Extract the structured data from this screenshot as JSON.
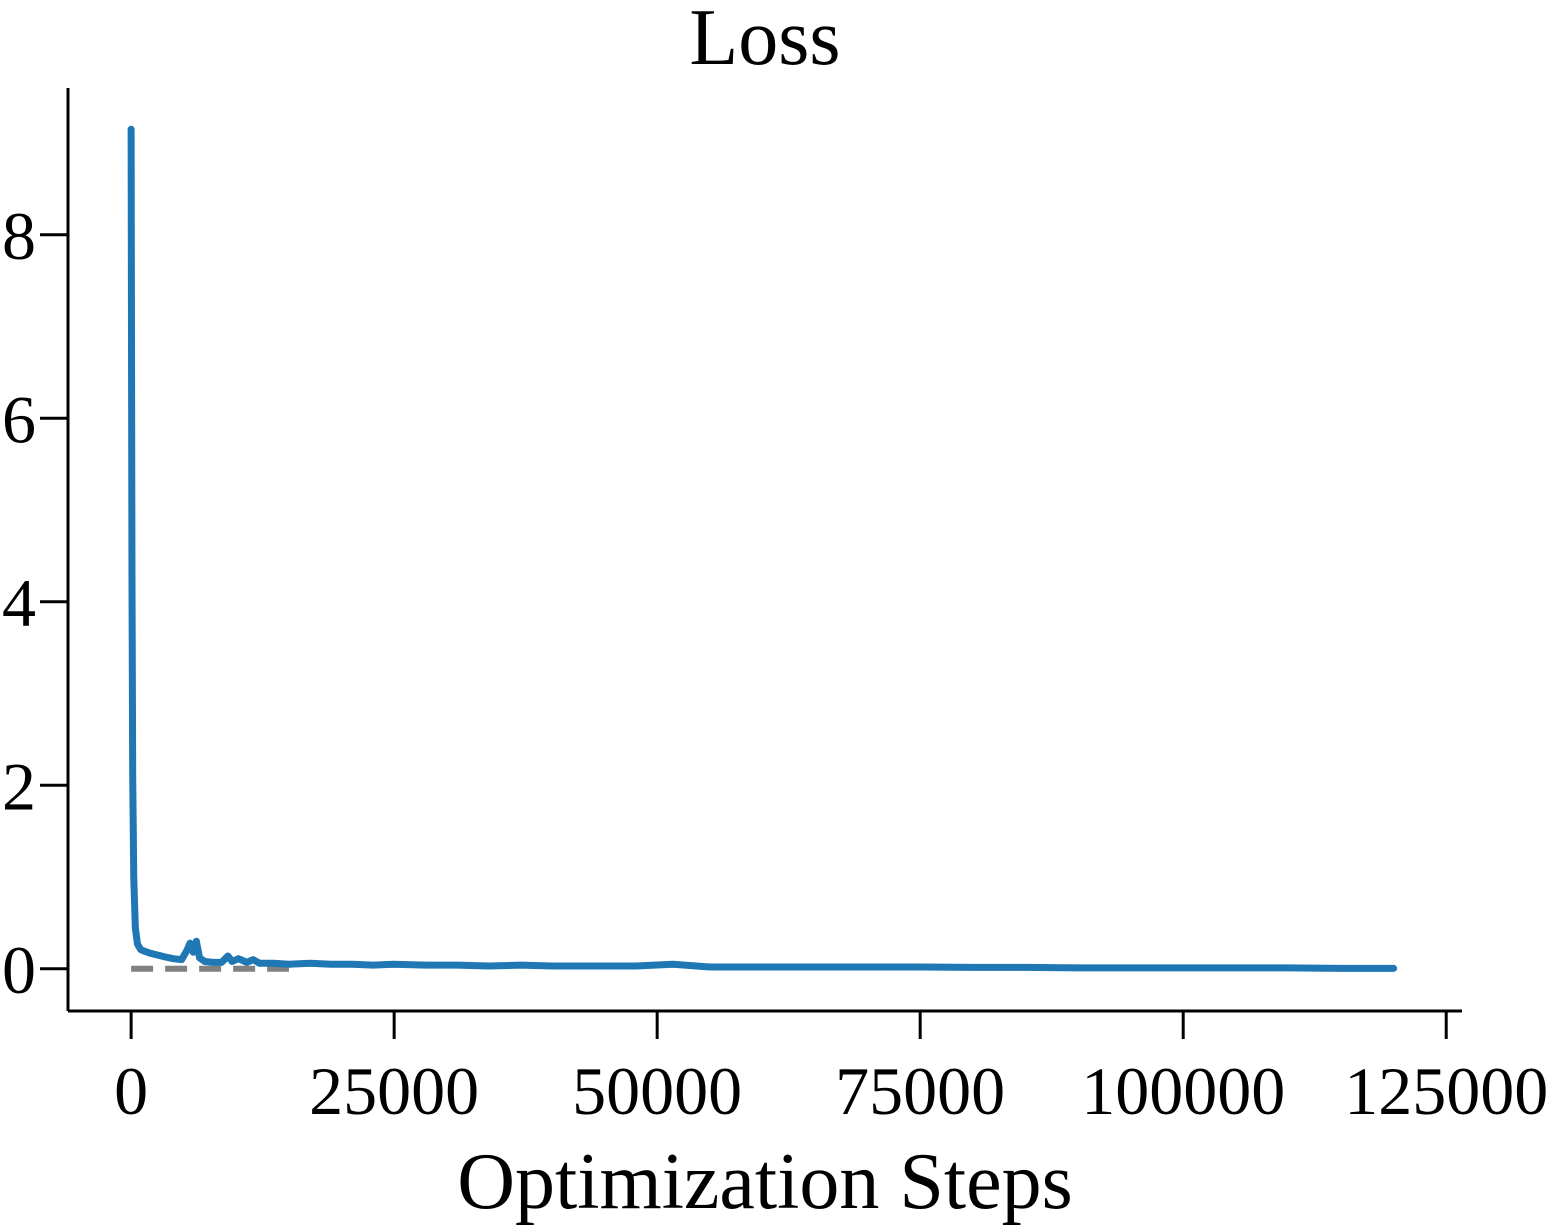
{
  "chart_data": {
    "type": "line",
    "title": "Loss",
    "xlabel": "Optimization Steps",
    "ylabel": "",
    "xlim": [
      -6000,
      126500
    ],
    "ylim": [
      -0.46,
      9.6
    ],
    "xticks": [
      0,
      25000,
      50000,
      75000,
      100000,
      125000
    ],
    "xtick_labels": [
      "0",
      "25000",
      "50000",
      "75000",
      "100000",
      "125000"
    ],
    "yticks": [
      0,
      2,
      4,
      6,
      8
    ],
    "ytick_labels": [
      "0",
      "2",
      "4",
      "6",
      "8"
    ],
    "grid": false,
    "legend": "none",
    "reference_line": {
      "name": "zero baseline",
      "y": 0,
      "x_range": [
        0,
        15000
      ],
      "color": "#808080",
      "style": "dashed"
    },
    "series": [
      {
        "name": "loss",
        "color": "#1f77b4",
        "x": [
          0,
          30,
          80,
          150,
          250,
          400,
          600,
          900,
          1300,
          1800,
          2500,
          3200,
          4000,
          4800,
          5300,
          5600,
          5900,
          6200,
          6500,
          7000,
          7800,
          8600,
          9200,
          9600,
          10200,
          11000,
          11600,
          12200,
          13500,
          15000,
          17000,
          19000,
          21000,
          23000,
          25000,
          28000,
          31000,
          34000,
          37000,
          40000,
          44000,
          48000,
          51500,
          55000,
          60000,
          65000,
          70000,
          75000,
          80000,
          85000,
          90000,
          95000,
          100000,
          105000,
          110000,
          115000,
          120000
        ],
        "y": [
          9.15,
          7.2,
          4.3,
          2.1,
          1.0,
          0.45,
          0.27,
          0.21,
          0.19,
          0.17,
          0.15,
          0.13,
          0.11,
          0.1,
          0.2,
          0.28,
          0.18,
          0.3,
          0.12,
          0.08,
          0.07,
          0.07,
          0.14,
          0.08,
          0.11,
          0.07,
          0.1,
          0.06,
          0.06,
          0.05,
          0.06,
          0.05,
          0.05,
          0.04,
          0.05,
          0.04,
          0.04,
          0.03,
          0.04,
          0.03,
          0.03,
          0.03,
          0.05,
          0.02,
          0.02,
          0.02,
          0.02,
          0.02,
          0.015,
          0.015,
          0.01,
          0.01,
          0.01,
          0.01,
          0.01,
          0.005,
          0.005
        ]
      }
    ]
  }
}
